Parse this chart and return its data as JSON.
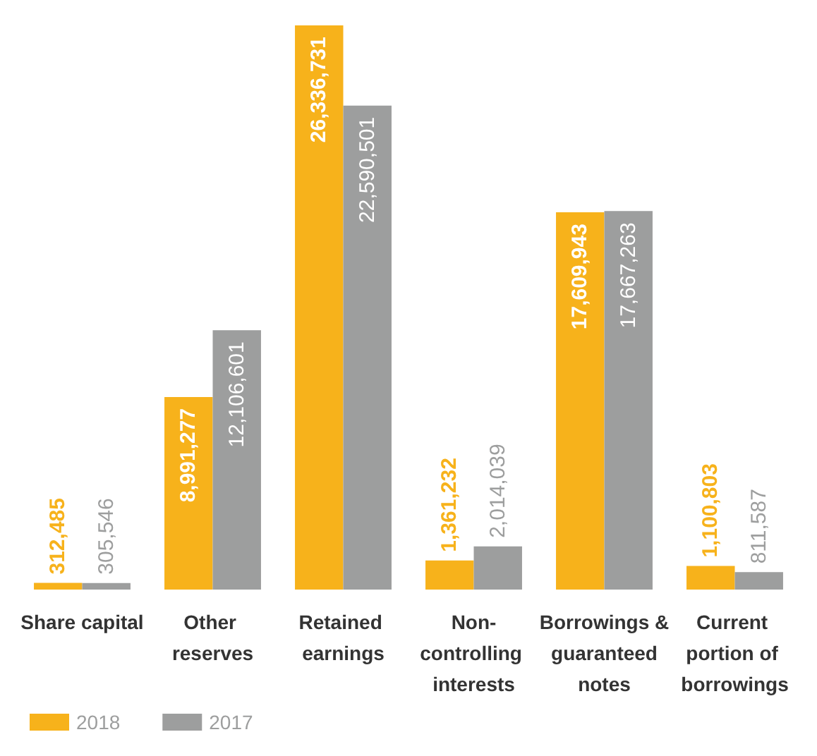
{
  "chart_data": {
    "type": "bar",
    "categories": [
      "Share capital",
      "Other reserves",
      "Retained earnings",
      "Non-controlling interests",
      "Borrowings & guaranteed notes",
      "Current portion of borrowings"
    ],
    "series": [
      {
        "name": "2018",
        "color": "#f7b21b",
        "values": [
          312485,
          8991277,
          26336731,
          1361232,
          17609943,
          1100803
        ],
        "value_labels": [
          "312,485",
          "8,991,277",
          "26,336,731",
          "1,361,232",
          "17,609,943",
          "1,100,803"
        ]
      },
      {
        "name": "2017",
        "color": "#9d9e9e",
        "values": [
          305546,
          12106601,
          22590501,
          2014039,
          17667263,
          811587
        ],
        "value_labels": [
          "305,546",
          "12,106,601",
          "22,590,501",
          "2,014,039",
          "17,667,263",
          "811,587"
        ]
      }
    ],
    "legend": "bottom left",
    "grid": false
  }
}
